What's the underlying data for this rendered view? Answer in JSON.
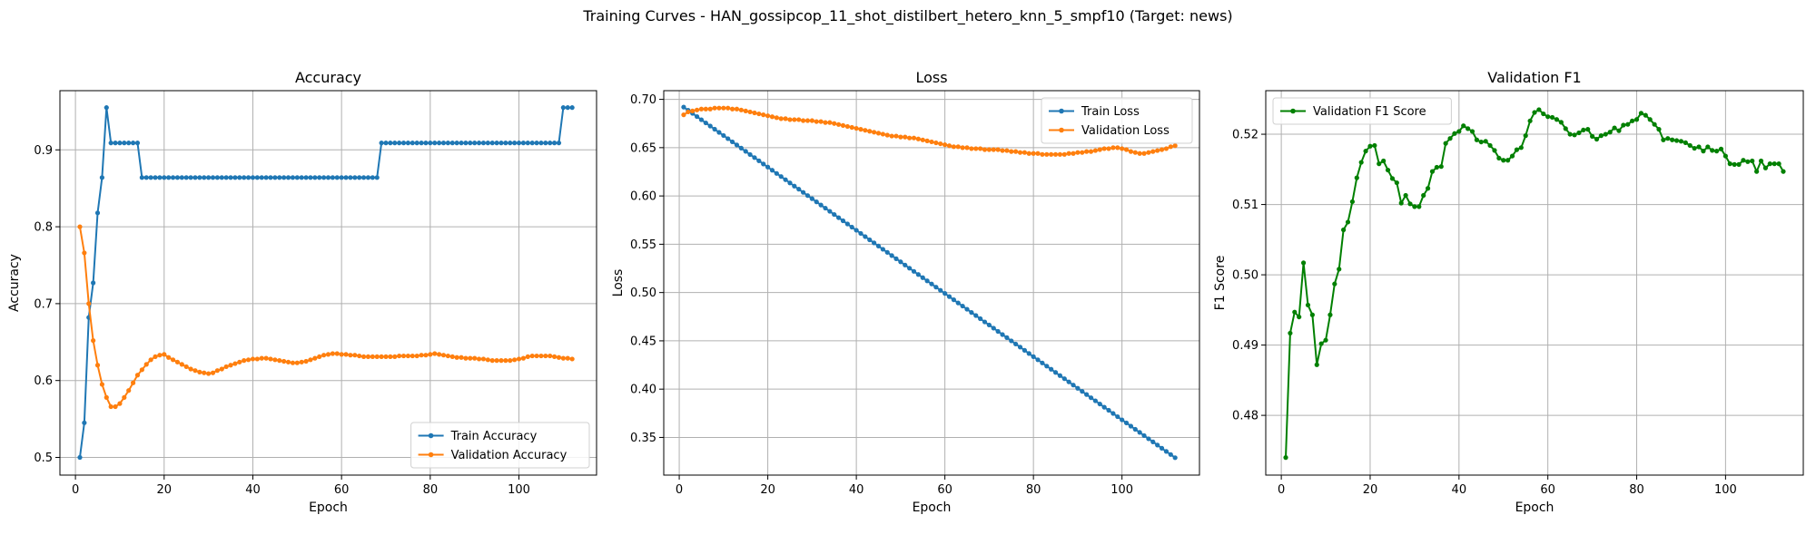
{
  "suptitle": "Training Curves - HAN_gossipcop_11_shot_distilbert_hetero_knn_5_smpf10 (Target: news)",
  "chart_data": [
    {
      "type": "line",
      "title": "Accuracy",
      "xlabel": "Epoch",
      "ylabel": "Accuracy",
      "xlim": [
        -3.5,
        117.5
      ],
      "ylim": [
        0.477,
        0.977
      ],
      "xticks": [
        0,
        20,
        40,
        60,
        80,
        100
      ],
      "yticks": [
        0.5,
        0.6,
        0.7,
        0.8,
        0.9
      ],
      "yticklabels": [
        "0.5",
        "0.6",
        "0.7",
        "0.8",
        "0.9"
      ],
      "grid": true,
      "legend_position": "lower-right",
      "series": [
        {
          "name": "Train Accuracy",
          "color": "#1f77b4",
          "y": [
            0.5,
            0.545,
            0.682,
            0.727,
            0.818,
            0.864,
            0.955,
            0.909,
            0.909,
            0.909,
            0.909,
            0.909,
            0.909,
            0.909,
            0.864,
            0.864,
            0.864,
            0.864,
            0.864,
            0.864,
            0.864,
            0.864,
            0.864,
            0.864,
            0.864,
            0.864,
            0.864,
            0.864,
            0.864,
            0.864,
            0.864,
            0.864,
            0.864,
            0.864,
            0.864,
            0.864,
            0.864,
            0.864,
            0.864,
            0.864,
            0.864,
            0.864,
            0.864,
            0.864,
            0.864,
            0.864,
            0.864,
            0.864,
            0.864,
            0.864,
            0.864,
            0.864,
            0.864,
            0.864,
            0.864,
            0.864,
            0.864,
            0.864,
            0.864,
            0.864,
            0.864,
            0.864,
            0.864,
            0.864,
            0.864,
            0.864,
            0.864,
            0.864,
            0.909,
            0.909,
            0.909,
            0.909,
            0.909,
            0.909,
            0.909,
            0.909,
            0.909,
            0.909,
            0.909,
            0.909,
            0.909,
            0.909,
            0.909,
            0.909,
            0.909,
            0.909,
            0.909,
            0.909,
            0.909,
            0.909,
            0.909,
            0.909,
            0.909,
            0.909,
            0.909,
            0.909,
            0.909,
            0.909,
            0.909,
            0.909,
            0.909,
            0.909,
            0.909,
            0.909,
            0.909,
            0.909,
            0.909,
            0.909,
            0.909,
            0.955,
            0.955,
            0.955
          ]
        },
        {
          "name": "Validation Accuracy",
          "color": "#ff7f0e",
          "y": [
            0.8,
            0.766,
            0.7,
            0.652,
            0.62,
            0.595,
            0.578,
            0.566,
            0.566,
            0.57,
            0.578,
            0.587,
            0.597,
            0.607,
            0.614,
            0.621,
            0.627,
            0.631,
            0.633,
            0.634,
            0.63,
            0.627,
            0.624,
            0.621,
            0.618,
            0.615,
            0.613,
            0.611,
            0.61,
            0.609,
            0.61,
            0.613,
            0.615,
            0.618,
            0.62,
            0.622,
            0.624,
            0.626,
            0.627,
            0.628,
            0.628,
            0.629,
            0.629,
            0.628,
            0.627,
            0.626,
            0.625,
            0.624,
            0.623,
            0.623,
            0.624,
            0.625,
            0.627,
            0.629,
            0.631,
            0.633,
            0.634,
            0.635,
            0.635,
            0.634,
            0.634,
            0.633,
            0.633,
            0.632,
            0.631,
            0.631,
            0.631,
            0.631,
            0.631,
            0.631,
            0.631,
            0.631,
            0.632,
            0.632,
            0.632,
            0.632,
            0.632,
            0.633,
            0.633,
            0.634,
            0.635,
            0.634,
            0.633,
            0.632,
            0.631,
            0.63,
            0.63,
            0.629,
            0.629,
            0.629,
            0.628,
            0.628,
            0.627,
            0.626,
            0.626,
            0.626,
            0.626,
            0.626,
            0.627,
            0.628,
            0.629,
            0.631,
            0.632,
            0.632,
            0.632,
            0.632,
            0.632,
            0.631,
            0.63,
            0.629,
            0.629,
            0.628
          ]
        }
      ]
    },
    {
      "type": "line",
      "title": "Loss",
      "xlabel": "Epoch",
      "ylabel": "Loss",
      "xlim": [
        -3.5,
        117.5
      ],
      "ylim": [
        0.311,
        0.709
      ],
      "xticks": [
        0,
        20,
        40,
        60,
        80,
        100
      ],
      "yticks": [
        0.35,
        0.4,
        0.45,
        0.5,
        0.55,
        0.6,
        0.65,
        0.7
      ],
      "yticklabels": [
        "0.35",
        "0.40",
        "0.45",
        "0.50",
        "0.55",
        "0.60",
        "0.65",
        "0.70"
      ],
      "grid": true,
      "legend_position": "top-right",
      "series": [
        {
          "name": "Train Loss",
          "color": "#1f77b4",
          "y": []
        },
        {
          "name": "Validation Loss",
          "color": "#ff7f0e",
          "y": [
            0.684,
            0.687,
            0.688,
            0.689,
            0.69,
            0.69,
            0.69,
            0.691,
            0.691,
            0.691,
            0.691,
            0.69,
            0.69,
            0.689,
            0.688,
            0.687,
            0.686,
            0.685,
            0.684,
            0.683,
            0.682,
            0.681,
            0.68,
            0.68,
            0.679,
            0.679,
            0.679,
            0.678,
            0.678,
            0.678,
            0.677,
            0.677,
            0.676,
            0.676,
            0.675,
            0.674,
            0.673,
            0.672,
            0.671,
            0.67,
            0.669,
            0.668,
            0.667,
            0.666,
            0.665,
            0.664,
            0.663,
            0.662,
            0.662,
            0.661,
            0.661,
            0.66,
            0.66,
            0.659,
            0.658,
            0.657,
            0.656,
            0.655,
            0.654,
            0.653,
            0.652,
            0.651,
            0.651,
            0.65,
            0.65,
            0.649,
            0.649,
            0.649,
            0.648,
            0.648,
            0.648,
            0.648,
            0.647,
            0.647,
            0.646,
            0.646,
            0.645,
            0.645,
            0.644,
            0.644,
            0.644,
            0.643,
            0.643,
            0.643,
            0.643,
            0.643,
            0.643,
            0.644,
            0.644,
            0.645,
            0.645,
            0.646,
            0.646,
            0.647,
            0.648,
            0.649,
            0.649,
            0.65,
            0.65,
            0.649,
            0.648,
            0.646,
            0.645,
            0.644,
            0.644,
            0.645,
            0.646,
            0.647,
            0.648,
            0.649,
            0.651,
            0.652
          ]
        }
      ]
    },
    {
      "type": "line",
      "title": "Validation F1",
      "xlabel": "Epoch",
      "ylabel": "F1 Score",
      "xlim": [
        -3.5,
        117.5
      ],
      "ylim": [
        0.4715,
        0.5262
      ],
      "xticks": [
        0,
        20,
        40,
        60,
        80,
        100
      ],
      "yticks": [
        0.48,
        0.49,
        0.5,
        0.51,
        0.52
      ],
      "yticklabels": [
        "0.48",
        "0.49",
        "0.50",
        "0.51",
        "0.52"
      ],
      "grid": true,
      "legend_position": "top-left",
      "series": [
        {
          "name": "Validation F1 Score",
          "color": "#008000",
          "y": [
            0.474,
            0.4917,
            0.4947,
            0.494,
            0.5017,
            0.4957,
            0.4943,
            0.4872,
            0.4902,
            0.4907,
            0.4943,
            0.4987,
            0.5008,
            0.5064,
            0.5075,
            0.5104,
            0.5138,
            0.516,
            0.5176,
            0.5183,
            0.5184,
            0.5158,
            0.5162,
            0.5149,
            0.5137,
            0.5131,
            0.5102,
            0.5113,
            0.5101,
            0.5097,
            0.5097,
            0.5113,
            0.5123,
            0.5147,
            0.5153,
            0.5154,
            0.5187,
            0.5194,
            0.5201,
            0.5204,
            0.5212,
            0.5208,
            0.5204,
            0.5192,
            0.5189,
            0.519,
            0.5184,
            0.5177,
            0.5166,
            0.5163,
            0.5163,
            0.5169,
            0.5178,
            0.5181,
            0.5198,
            0.5219,
            0.5231,
            0.5235,
            0.5229,
            0.5225,
            0.5224,
            0.5221,
            0.5217,
            0.5208,
            0.52,
            0.5199,
            0.5202,
            0.5206,
            0.5207,
            0.5197,
            0.5193,
            0.5198,
            0.52,
            0.5203,
            0.5209,
            0.5205,
            0.5213,
            0.5214,
            0.5219,
            0.5221,
            0.523,
            0.5227,
            0.5221,
            0.5214,
            0.5207,
            0.5192,
            0.5194,
            0.5192,
            0.5191,
            0.519,
            0.5188,
            0.5184,
            0.518,
            0.5182,
            0.5176,
            0.5182,
            0.5177,
            0.5176,
            0.5179,
            0.5169,
            0.5158,
            0.5157,
            0.5157,
            0.5163,
            0.5161,
            0.5162,
            0.5147,
            0.5162,
            0.5152,
            0.5158,
            0.5158,
            0.5158,
            0.5147
          ]
        }
      ]
    }
  ]
}
